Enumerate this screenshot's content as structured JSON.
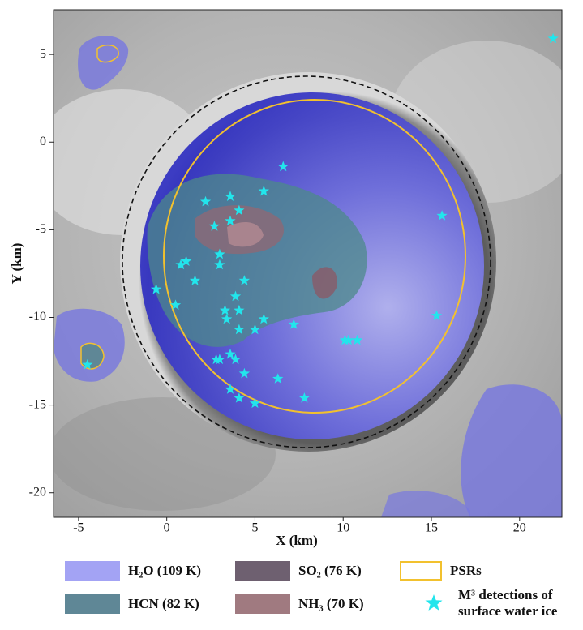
{
  "chart_data": {
    "type": "scatter",
    "x_label": "X (km)",
    "y_label": "Y (km)",
    "xlim": [
      -6.42,
      22.4
    ],
    "ylim": [
      -21.4,
      7.55
    ],
    "xticks": [
      -5,
      0,
      5,
      10,
      15,
      20
    ],
    "yticks": [
      5,
      0,
      -5,
      -10,
      -15,
      -20
    ],
    "legend": [
      {
        "name": "H₂O (109 K)",
        "color": "#a3a3f4"
      },
      {
        "name": "SO₂ (76 K)",
        "color": "#6e6070"
      },
      {
        "name": "PSRs",
        "color": "#f2c12e"
      },
      {
        "name": "HCN (82 K)",
        "color": "#5f8796"
      },
      {
        "name": "NH₃ (70 K)",
        "color": "#a07a80"
      }
    ],
    "series": [
      {
        "name": "M³ detections of surface water ice",
        "color": "#22e5ec",
        "x": [
          6.6,
          5.5,
          2.2,
          3.6,
          4.1,
          3.6,
          2.7,
          15.6,
          3.0,
          1.1,
          0.8,
          3.0,
          1.6,
          4.4,
          -0.6,
          3.9,
          0.5,
          3.3,
          4.1,
          3.4,
          5.5,
          15.3,
          7.2,
          4.1,
          5.0,
          10.1,
          10.3,
          10.8,
          3.6,
          3.9,
          2.8,
          3.0,
          4.4,
          6.3,
          3.6,
          4.1,
          7.8,
          5.0,
          -4.5,
          21.9
        ],
        "values": [
          -1.4,
          -2.8,
          -3.4,
          -3.1,
          -3.9,
          -4.5,
          -4.8,
          -4.2,
          -6.4,
          -6.8,
          -7.0,
          -7.0,
          -7.9,
          -7.9,
          -8.4,
          -8.8,
          -9.3,
          -9.6,
          -9.6,
          -10.1,
          -10.1,
          -9.9,
          -10.4,
          -10.7,
          -10.7,
          -11.3,
          -11.3,
          -11.3,
          -12.1,
          -12.4,
          -12.4,
          -12.4,
          -13.2,
          -13.5,
          -14.1,
          -14.6,
          -14.6,
          -14.9,
          -12.7,
          5.9
        ]
      }
    ]
  }
}
